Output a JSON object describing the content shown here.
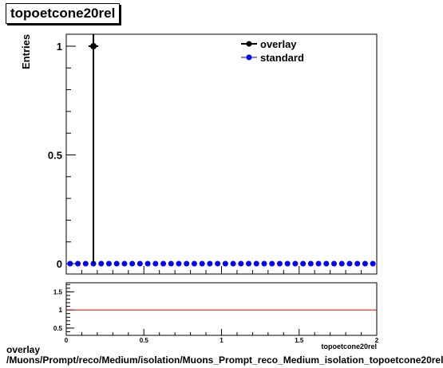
{
  "chart_data": [
    {
      "type": "scatter",
      "title": "topoetcone20rel",
      "ylabel": "Entries",
      "xlabel": "topoetcone20rel",
      "xlim": [
        0,
        2
      ],
      "ylim": [
        0,
        1.05
      ],
      "yticks": [
        {
          "v": 0,
          "label": "0"
        },
        {
          "v": 0.5,
          "label": "0.5"
        },
        {
          "v": 1,
          "label": "1"
        }
      ],
      "legend": {
        "placement": "top-right"
      },
      "series": [
        {
          "name": "overlay",
          "color": "#000000",
          "x": [
            0.175
          ],
          "y": [
            1
          ]
        },
        {
          "name": "standard",
          "color": "#0000ff",
          "x": [
            0.025,
            0.075,
            0.125,
            0.175,
            0.225,
            0.275,
            0.325,
            0.375,
            0.425,
            0.475,
            0.525,
            0.575,
            0.625,
            0.675,
            0.725,
            0.775,
            0.825,
            0.875,
            0.925,
            0.975,
            1.025,
            1.075,
            1.125,
            1.175,
            1.225,
            1.275,
            1.325,
            1.375,
            1.425,
            1.475,
            1.525,
            1.575,
            1.625,
            1.675,
            1.725,
            1.775,
            1.825,
            1.875,
            1.925,
            1.975
          ],
          "y": [
            0,
            0,
            0,
            0,
            0,
            0,
            0,
            0,
            0,
            0,
            0,
            0,
            0,
            0,
            0,
            0,
            0,
            0,
            0,
            0,
            0,
            0,
            0,
            0,
            0,
            0,
            0,
            0,
            0,
            0,
            0,
            0,
            0,
            0,
            0,
            0,
            0,
            0,
            0,
            0
          ]
        }
      ]
    },
    {
      "type": "line",
      "xlim": [
        0,
        2
      ],
      "ylim": [
        0.3,
        1.75
      ],
      "xticks": [
        {
          "v": 0,
          "label": "0"
        },
        {
          "v": 0.5,
          "label": "0.5"
        },
        {
          "v": 1,
          "label": "1"
        },
        {
          "v": 1.5,
          "label": "1.5"
        },
        {
          "v": 2,
          "label": "2"
        }
      ],
      "yticks": [
        {
          "v": 0.5,
          "label": "0.5"
        },
        {
          "v": 1,
          "label": "1"
        },
        {
          "v": 1.5,
          "label": "1.5"
        }
      ],
      "reference_line": {
        "y": 1,
        "color": "#cc0000"
      }
    }
  ],
  "footer": {
    "line1": "overlay",
    "line2": "/Muons/Prompt/reco/Medium/isolation/Muons_Prompt_reco_Medium_isolation_topoetcone20rel"
  }
}
